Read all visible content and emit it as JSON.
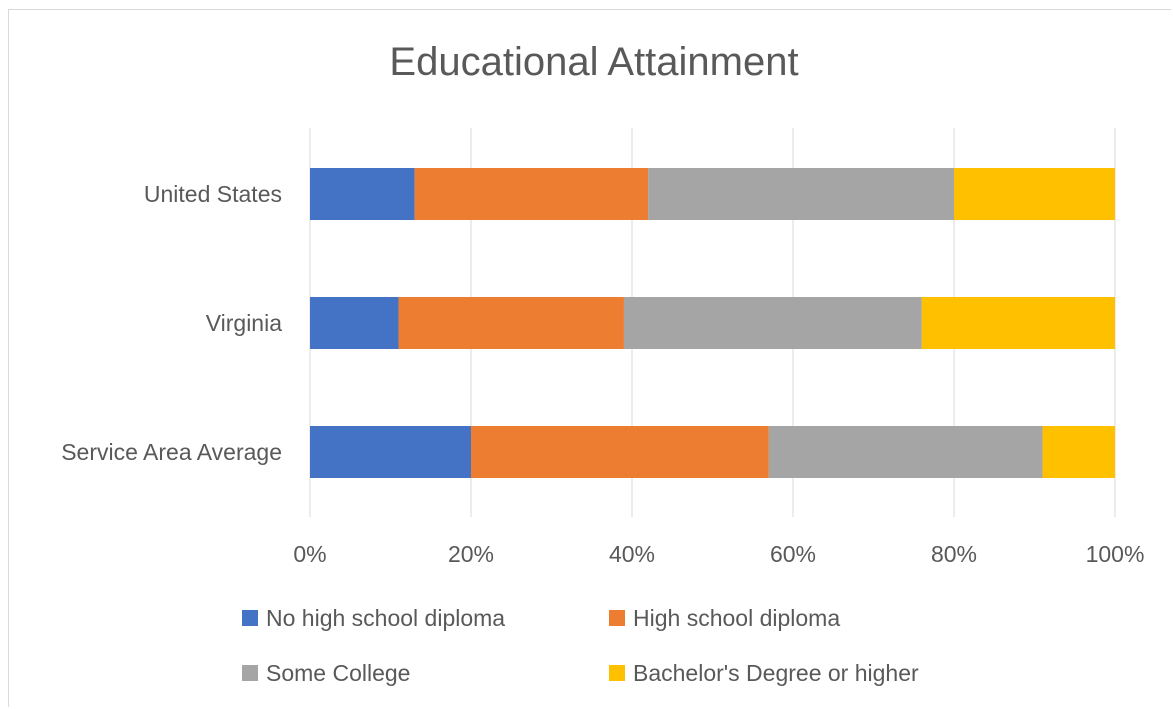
{
  "chart_data": {
    "type": "bar",
    "orientation": "horizontal",
    "stacked": "percent",
    "title": "Educational Attainment",
    "categories": [
      "United States",
      "Virginia",
      "Service Area Average"
    ],
    "series": [
      {
        "name": "No high school diploma",
        "color": "#4472C4",
        "values": [
          13,
          11,
          20
        ]
      },
      {
        "name": "High school diploma",
        "color": "#ED7D31",
        "values": [
          29,
          28,
          37
        ]
      },
      {
        "name": "Some College",
        "color": "#A5A5A5",
        "values": [
          38,
          37,
          34
        ]
      },
      {
        "name": "Bachelor's Degree or higher",
        "color": "#FFC000",
        "values": [
          20,
          24,
          9
        ]
      }
    ],
    "xticks": [
      "0%",
      "20%",
      "40%",
      "60%",
      "80%",
      "100%"
    ],
    "xlim": [
      0,
      100
    ],
    "grid": "vertical",
    "legend_position": "bottom"
  }
}
